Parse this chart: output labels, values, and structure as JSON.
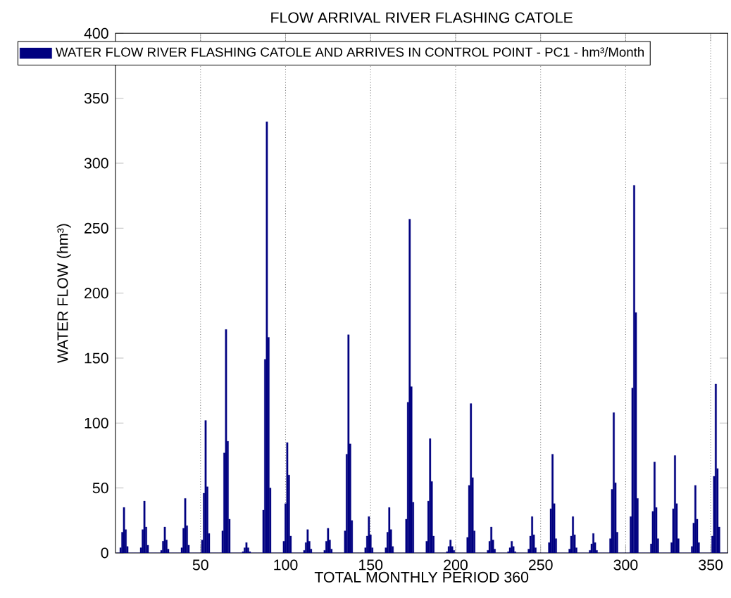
{
  "chart_data": {
    "type": "bar",
    "title": "FLOW ARRIVAL RIVER FLASHING CATOLE",
    "xlabel": "TOTAL MONTHLY PERIOD   360",
    "ylabel": "WATER FLOW (hm³)",
    "xlim": [
      0,
      360
    ],
    "xticks": [
      50,
      100,
      150,
      200,
      250,
      300,
      350
    ],
    "ylim": [
      0,
      400
    ],
    "yticks": [
      0,
      50,
      100,
      150,
      200,
      250,
      300,
      350,
      400
    ],
    "grid": "x",
    "legend": "top",
    "x": [
      1,
      2,
      3,
      4,
      5,
      6,
      7,
      8,
      9,
      10,
      11,
      12,
      13,
      14,
      15,
      16,
      17,
      18,
      19,
      20,
      21,
      22,
      23,
      24,
      25,
      26,
      27,
      28,
      29,
      30,
      31,
      32,
      33,
      34,
      35,
      36,
      37,
      38,
      39,
      40,
      41,
      42,
      43,
      44,
      45,
      46,
      47,
      48,
      49,
      50,
      51,
      52,
      53,
      54,
      55,
      56,
      57,
      58,
      59,
      60,
      61,
      62,
      63,
      64,
      65,
      66,
      67,
      68,
      69,
      70,
      71,
      72,
      73,
      74,
      75,
      76,
      77,
      78,
      79,
      80,
      81,
      82,
      83,
      84,
      85,
      86,
      87,
      88,
      89,
      90,
      91,
      92,
      93,
      94,
      95,
      96,
      97,
      98,
      99,
      100,
      101,
      102,
      103,
      104,
      105,
      106,
      107,
      108,
      109,
      110,
      111,
      112,
      113,
      114,
      115,
      116,
      117,
      118,
      119,
      120,
      121,
      122,
      123,
      124,
      125,
      126,
      127,
      128,
      129,
      130,
      131,
      132,
      133,
      134,
      135,
      136,
      137,
      138,
      139,
      140,
      141,
      142,
      143,
      144,
      145,
      146,
      147,
      148,
      149,
      150,
      151,
      152,
      153,
      154,
      155,
      156,
      157,
      158,
      159,
      160,
      161,
      162,
      163,
      164,
      165,
      166,
      167,
      168,
      169,
      170,
      171,
      172,
      173,
      174,
      175,
      176,
      177,
      178,
      179,
      180,
      181,
      182,
      183,
      184,
      185,
      186,
      187,
      188,
      189,
      190,
      191,
      192,
      193,
      194,
      195,
      196,
      197,
      198,
      199,
      200,
      201,
      202,
      203,
      204,
      205,
      206,
      207,
      208,
      209,
      210,
      211,
      212,
      213,
      214,
      215,
      216,
      217,
      218,
      219,
      220,
      221,
      222,
      223,
      224,
      225,
      226,
      227,
      228,
      229,
      230,
      231,
      232,
      233,
      234,
      235,
      236,
      237,
      238,
      239,
      240,
      241,
      242,
      243,
      244,
      245,
      246,
      247,
      248,
      249,
      250,
      251,
      252,
      253,
      254,
      255,
      256,
      257,
      258,
      259,
      260,
      261,
      262,
      263,
      264,
      265,
      266,
      267,
      268,
      269,
      270,
      271,
      272,
      273,
      274,
      275,
      276,
      277,
      278,
      279,
      280,
      281,
      282,
      283,
      284,
      285,
      286,
      287,
      288,
      289,
      290,
      291,
      292,
      293,
      294,
      295,
      296,
      297,
      298,
      299,
      300,
      301,
      302,
      303,
      304,
      305,
      306,
      307,
      308,
      309,
      310,
      311,
      312,
      313,
      314,
      315,
      316,
      317,
      318,
      319,
      320,
      321,
      322,
      323,
      324,
      325,
      326,
      327,
      328,
      329,
      330,
      331,
      332,
      333,
      334,
      335,
      336,
      337,
      338,
      339,
      340,
      341,
      342,
      343,
      344,
      345,
      346,
      347,
      348,
      349,
      350,
      351,
      352,
      353,
      354,
      355,
      356,
      357,
      358,
      359,
      360
    ],
    "series": [
      {
        "name": "WATER FLOW RIVER FLASHING CATOLE AND ARRIVES IN CONTROL POINT - PC1 - hm³/Month",
        "color": "#000080",
        "values": [
          0,
          0,
          4,
          16,
          35,
          18,
          5,
          0,
          0,
          0,
          0,
          0,
          0,
          0,
          4,
          18,
          40,
          20,
          6,
          0,
          0,
          0,
          0,
          0,
          0,
          0,
          2,
          9,
          20,
          10,
          3,
          0,
          0,
          0,
          0,
          0,
          0,
          0,
          4,
          19,
          42,
          21,
          6,
          0,
          0,
          0,
          0,
          0,
          0,
          0,
          10,
          46,
          102,
          51,
          15,
          0,
          0,
          0,
          0,
          0,
          0,
          0,
          17,
          77,
          172,
          86,
          26,
          0,
          0,
          0,
          0,
          0,
          0,
          0,
          1,
          4,
          8,
          4,
          1,
          0,
          0,
          0,
          0,
          0,
          0,
          0,
          33,
          149,
          332,
          166,
          50,
          0,
          0,
          0,
          0,
          0,
          0,
          0,
          9,
          38,
          85,
          60,
          13,
          0,
          0,
          0,
          0,
          0,
          0,
          0,
          2,
          8,
          18,
          9,
          3,
          0,
          0,
          0,
          0,
          0,
          0,
          0,
          2,
          9,
          19,
          10,
          3,
          0,
          0,
          0,
          0,
          0,
          0,
          0,
          17,
          76,
          168,
          84,
          25,
          0,
          0,
          0,
          0,
          0,
          0,
          0,
          4,
          13,
          28,
          14,
          4,
          0,
          0,
          0,
          0,
          0,
          0,
          0,
          4,
          16,
          35,
          18,
          5,
          0,
          0,
          0,
          0,
          0,
          0,
          0,
          26,
          116,
          257,
          128,
          39,
          0,
          0,
          0,
          0,
          0,
          0,
          0,
          9,
          40,
          88,
          55,
          13,
          0,
          0,
          0,
          0,
          0,
          0,
          0,
          1,
          5,
          10,
          5,
          2,
          0,
          0,
          0,
          0,
          0,
          0,
          0,
          12,
          52,
          115,
          58,
          17,
          0,
          0,
          0,
          0,
          0,
          0,
          0,
          2,
          9,
          20,
          10,
          3,
          0,
          0,
          0,
          0,
          0,
          0,
          0,
          1,
          4,
          9,
          5,
          1,
          0,
          0,
          0,
          0,
          0,
          0,
          0,
          3,
          13,
          28,
          14,
          4,
          0,
          0,
          0,
          0,
          0,
          0,
          0,
          8,
          34,
          76,
          38,
          11,
          0,
          0,
          0,
          0,
          0,
          0,
          0,
          3,
          13,
          28,
          14,
          4,
          0,
          0,
          0,
          0,
          0,
          0,
          0,
          2,
          7,
          15,
          8,
          2,
          0,
          0,
          0,
          0,
          0,
          0,
          0,
          11,
          49,
          108,
          54,
          16,
          0,
          0,
          0,
          0,
          0,
          0,
          0,
          28,
          127,
          283,
          185,
          42,
          0,
          0,
          0,
          0,
          0,
          0,
          0,
          7,
          32,
          70,
          35,
          11,
          0,
          0,
          0,
          0,
          0,
          0,
          0,
          8,
          34,
          75,
          38,
          11,
          0,
          0,
          0,
          0,
          0,
          0,
          0,
          5,
          23,
          52,
          26,
          8,
          0,
          0,
          0,
          0,
          0,
          0,
          0,
          13,
          59,
          130,
          65,
          20,
          0,
          0,
          0,
          0,
          0
        ]
      }
    ]
  }
}
